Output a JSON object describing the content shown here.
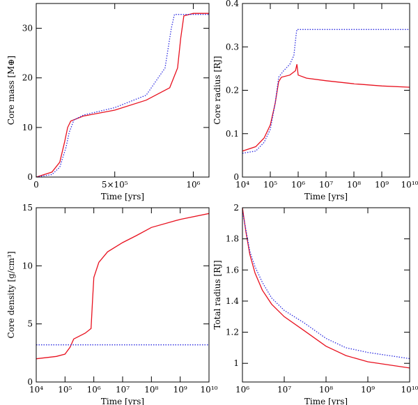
{
  "chart_data": [
    {
      "type": "line",
      "xlabel": "Time [yrs]",
      "ylabel": "Core mass [M⊕]",
      "xscale": "linear",
      "xlim": [
        0,
        1100000
      ],
      "ylim": [
        0,
        35
      ],
      "xticks": [
        0,
        {
          "value": 500000,
          "label": "5×10⁵"
        },
        {
          "value": 1000000,
          "label": "10⁶"
        }
      ],
      "yticks": [
        0,
        10,
        20,
        30
      ],
      "series": [
        {
          "color": "#e8101e",
          "dash": "solid",
          "x": [
            0,
            100000,
            150000,
            180000,
            200000,
            220000,
            300000,
            500000,
            700000,
            850000,
            900000,
            920000,
            940000,
            1000000,
            1100000
          ],
          "values": [
            0,
            1,
            3,
            7,
            10,
            11.3,
            12.3,
            13.5,
            15.5,
            18,
            22,
            28,
            32.5,
            33,
            33
          ]
        },
        {
          "color": "#2a2ae0",
          "dash": "dotted",
          "x": [
            0,
            100000,
            150000,
            190000,
            210000,
            240000,
            300000,
            500000,
            700000,
            820000,
            860000,
            880000,
            1100000
          ],
          "values": [
            0,
            0.5,
            2,
            6,
            9,
            11.5,
            12.5,
            14,
            16.5,
            22,
            30,
            32.8,
            32.8
          ]
        }
      ]
    },
    {
      "type": "line",
      "xlabel": "Time [yrs]",
      "ylabel": "Core radius [RJ]",
      "xscale": "log",
      "xlim": [
        10000,
        10000000000
      ],
      "ylim": [
        0,
        0.4
      ],
      "xticks": [
        {
          "value": 10000,
          "label": "10⁴"
        },
        {
          "value": 100000,
          "label": "10⁵"
        },
        {
          "value": 1000000,
          "label": "10⁶"
        },
        {
          "value": 10000000,
          "label": "10⁷"
        },
        {
          "value": 100000000,
          "label": "10⁸"
        },
        {
          "value": 1000000000,
          "label": "10⁹"
        },
        {
          "value": 10000000000,
          "label": "10¹⁰"
        }
      ],
      "yticks": [
        0,
        0.1,
        0.2,
        0.3,
        0.4
      ],
      "series": [
        {
          "color": "#e8101e",
          "dash": "solid",
          "x": [
            10000,
            30000,
            60000,
            100000,
            150000,
            200000,
            250000,
            500000,
            800000,
            900000,
            1000000,
            2000000,
            10000000,
            100000000,
            1000000000,
            10000000000
          ],
          "values": [
            0.06,
            0.07,
            0.09,
            0.12,
            0.17,
            0.22,
            0.23,
            0.235,
            0.245,
            0.26,
            0.235,
            0.228,
            0.222,
            0.215,
            0.21,
            0.207
          ]
        },
        {
          "color": "#2a2ae0",
          "dash": "dotted",
          "x": [
            10000,
            30000,
            60000,
            100000,
            150000,
            200000,
            300000,
            500000,
            700000,
            850000,
            900000,
            10000000000
          ],
          "values": [
            0.055,
            0.06,
            0.08,
            0.11,
            0.17,
            0.23,
            0.245,
            0.26,
            0.28,
            0.33,
            0.34,
            0.34
          ]
        }
      ]
    },
    {
      "type": "line",
      "xlabel": "Time [yrs]",
      "ylabel": "Core density [g/cm³]",
      "xscale": "log",
      "xlim": [
        10000,
        10000000000
      ],
      "ylim": [
        0,
        15
      ],
      "xticks": [
        {
          "value": 10000,
          "label": "10⁴"
        },
        {
          "value": 100000,
          "label": "10⁵"
        },
        {
          "value": 1000000,
          "label": "10⁶"
        },
        {
          "value": 10000000,
          "label": "10⁷"
        },
        {
          "value": 100000000,
          "label": "10⁸"
        },
        {
          "value": 1000000000,
          "label": "10⁹"
        },
        {
          "value": 10000000000,
          "label": "10¹⁰"
        }
      ],
      "yticks": [
        0,
        5,
        10,
        15
      ],
      "series": [
        {
          "color": "#e8101e",
          "dash": "solid",
          "x": [
            10000,
            50000,
            100000,
            150000,
            200000,
            500000,
            800000,
            900000,
            1000000,
            1500000,
            3000000,
            10000000,
            30000000,
            100000000,
            1000000000,
            10000000000
          ],
          "values": [
            2.0,
            2.2,
            2.4,
            3.0,
            3.7,
            4.2,
            4.6,
            7,
            9,
            10.3,
            11.2,
            12,
            12.6,
            13.3,
            14,
            14.5
          ]
        },
        {
          "color": "#2a2ae0",
          "dash": "dotted",
          "x": [
            10000,
            10000000000
          ],
          "values": [
            3.2,
            3.2
          ]
        }
      ]
    },
    {
      "type": "line",
      "xlabel": "Time [yrs]",
      "ylabel": "Total radius [RJ]",
      "xscale": "log",
      "xlim": [
        1000000,
        10000000000
      ],
      "ylim": [
        0.88,
        2
      ],
      "xticks": [
        {
          "value": 1000000,
          "label": "10⁶"
        },
        {
          "value": 10000000,
          "label": "10⁷"
        },
        {
          "value": 100000000,
          "label": "10⁸"
        },
        {
          "value": 1000000000,
          "label": "10⁹"
        },
        {
          "value": 10000000000,
          "label": "10¹⁰"
        }
      ],
      "yticks": [
        1,
        1.2,
        1.4,
        1.6,
        1.8,
        2
      ],
      "series": [
        {
          "color": "#e8101e",
          "dash": "solid",
          "x": [
            1000000,
            1200000,
            1500000,
            2000000,
            3000000,
            5000000,
            10000000,
            30000000,
            100000000,
            300000000,
            1000000000,
            10000000000
          ],
          "values": [
            2,
            1.85,
            1.7,
            1.58,
            1.47,
            1.38,
            1.3,
            1.21,
            1.11,
            1.05,
            1.01,
            0.97
          ]
        },
        {
          "color": "#2a2ae0",
          "dash": "dotted",
          "x": [
            1000000,
            1500000,
            2000000,
            3000000,
            5000000,
            10000000,
            30000000,
            100000000,
            300000000,
            1000000000,
            10000000000
          ],
          "values": [
            1.98,
            1.72,
            1.62,
            1.52,
            1.42,
            1.34,
            1.26,
            1.16,
            1.1,
            1.07,
            1.03
          ]
        }
      ]
    }
  ]
}
